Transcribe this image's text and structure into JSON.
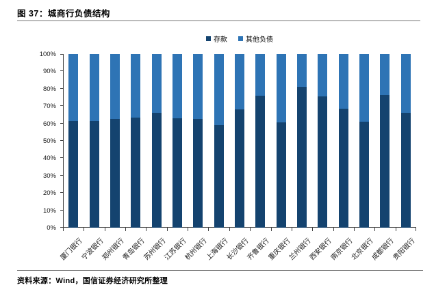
{
  "figure": {
    "title": "图 37：城商行负债结构",
    "source": "资料来源：Wind，国信证券经济研究所整理"
  },
  "colors": {
    "deposits": "#14436f",
    "other_liabilities": "#2e74b5",
    "axis": "#404040",
    "rule": "#737373"
  },
  "chart_data": {
    "type": "bar",
    "stacked": true,
    "percent_stacked": true,
    "title": "城商行负债结构",
    "xlabel": "",
    "ylabel": "",
    "ylim": [
      0,
      100
    ],
    "ytick_step": 10,
    "ytick_suffix": "%",
    "grid": false,
    "legend_position": "top-center",
    "categories": [
      "厦门银行",
      "宁波银行",
      "郑州银行",
      "青岛银行",
      "苏州银行",
      "江苏银行",
      "杭州银行",
      "上海银行",
      "长沙银行",
      "齐鲁银行",
      "重庆银行",
      "兰州银行",
      "西安银行",
      "南京银行",
      "北京银行",
      "成都银行",
      "贵阳银行"
    ],
    "series": [
      {
        "name": "存款",
        "color": "#14436f",
        "values": [
          61.5,
          61.5,
          62.5,
          63.5,
          66,
          63,
          62.5,
          59,
          68,
          76,
          60.5,
          81,
          75.5,
          68.5,
          61,
          76.5,
          66
        ]
      },
      {
        "name": "其他负债",
        "color": "#2e74b5",
        "values": [
          38.5,
          38.5,
          37.5,
          36.5,
          34,
          37,
          37.5,
          41,
          32,
          24,
          39.5,
          19,
          24.5,
          31.5,
          39,
          23.5,
          34
        ]
      }
    ]
  }
}
